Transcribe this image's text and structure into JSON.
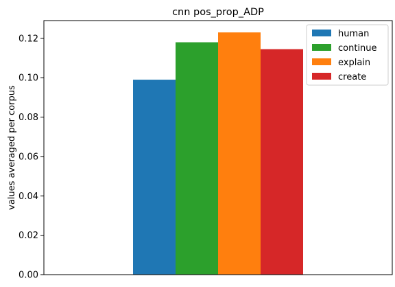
{
  "chart_data": {
    "type": "bar",
    "title": "cnn pos_prop_ADP",
    "xlabel": "",
    "ylabel": "values averaged per corpus",
    "categories": [
      ""
    ],
    "ylim": [
      0,
      0.129
    ],
    "yticks": [
      0.0,
      0.02,
      0.04,
      0.06,
      0.08,
      0.1,
      0.12
    ],
    "ytick_labels": [
      "0.00",
      "0.02",
      "0.04",
      "0.06",
      "0.08",
      "0.10",
      "0.12"
    ],
    "grid": false,
    "legend_position": "top-right",
    "series": [
      {
        "name": "human",
        "values": [
          0.099
        ],
        "color": "#1f77b4"
      },
      {
        "name": "continue",
        "values": [
          0.118
        ],
        "color": "#2ca02c"
      },
      {
        "name": "explain",
        "values": [
          0.123
        ],
        "color": "#ff7f0e"
      },
      {
        "name": "create",
        "values": [
          0.1145
        ],
        "color": "#d62728"
      }
    ]
  }
}
